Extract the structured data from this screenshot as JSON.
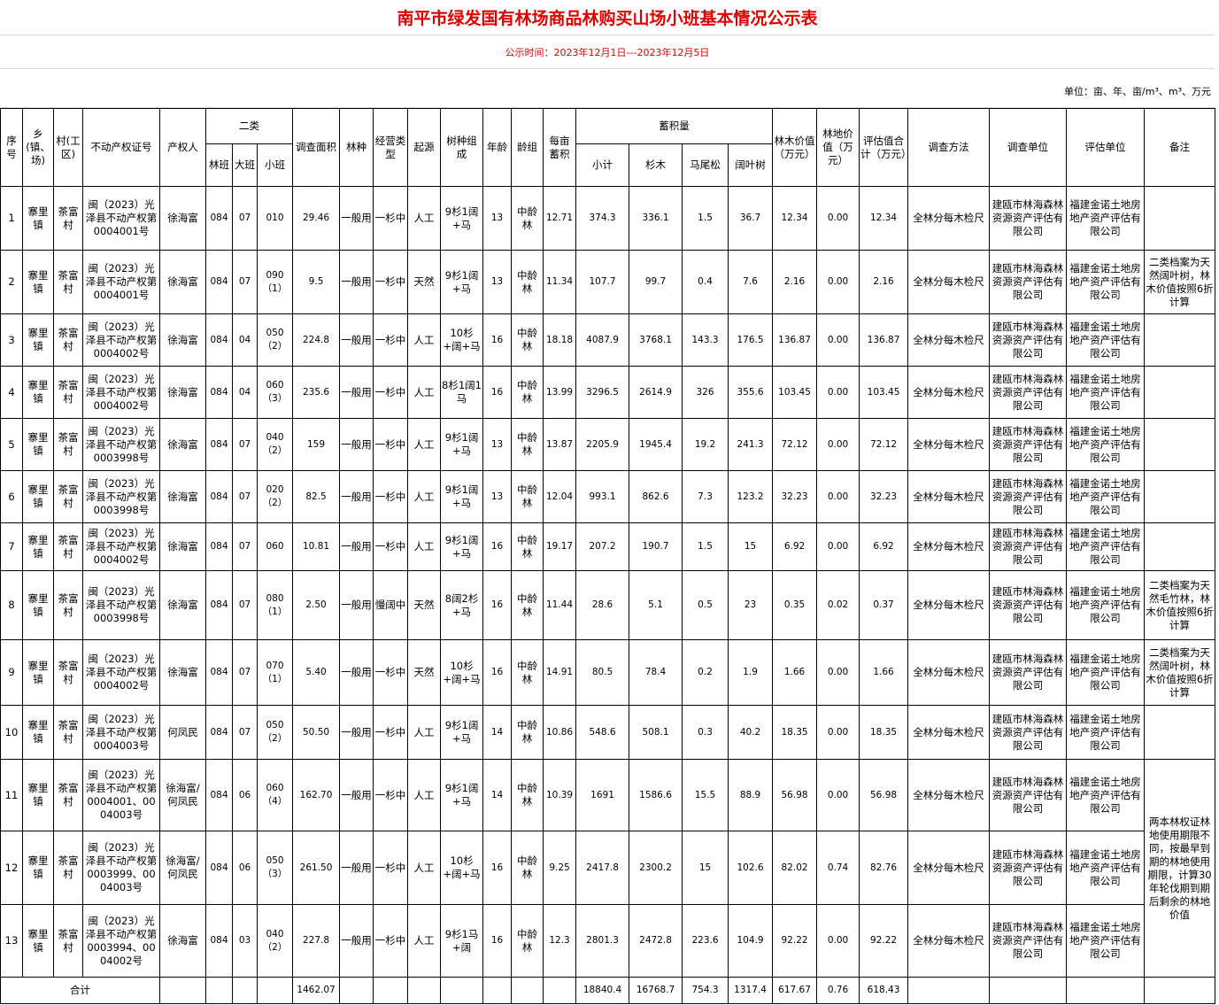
{
  "title": "南平市绿发国有林场商品林购买山场小班基本情况公示表",
  "period": "公示时间：2023年12月1日---2023年12月5日",
  "unit": "单位：亩、年、亩/m³、m³、万元",
  "header": {
    "columns": [
      {
        "label": "序号"
      },
      {
        "label": "乡(镇、场)"
      },
      {
        "label": "村(工区)"
      },
      {
        "label": "不动产权证号"
      },
      {
        "label": "产权人"
      },
      {
        "label": "二类",
        "sub": [
          "林班",
          "大班",
          "小班"
        ]
      },
      {
        "label": "调查面积"
      },
      {
        "label": "林种"
      },
      {
        "label": "经营类型"
      },
      {
        "label": "起源"
      },
      {
        "label": "树种组成"
      },
      {
        "label": "年龄"
      },
      {
        "label": "龄组"
      },
      {
        "label": "每亩蓄积"
      },
      {
        "label": "蓄积量",
        "sub": [
          "小计",
          "杉木",
          "马尾松",
          "阔叶树"
        ]
      },
      {
        "label": "林木价值（万元）"
      },
      {
        "label": "林地价值（万元）"
      },
      {
        "label": "评估值合计（万元）"
      },
      {
        "label": "调查方法"
      },
      {
        "label": "调查单位"
      },
      {
        "label": "评估单位"
      },
      {
        "label": "备注"
      }
    ]
  },
  "rows": [
    {
      "cells": [
        "1",
        "寨里镇",
        "茶富村",
        "闽（2023）光泽县不动产权第0004001号",
        "徐海富",
        "084",
        "07",
        "010",
        "29.46",
        "一般用",
        "一杉中",
        "人工",
        "9杉1阔+马",
        "13",
        "中龄林",
        "12.71",
        "374.3",
        "336.1",
        "1.5",
        "36.7",
        "12.34",
        "0.00",
        "12.34",
        "全林分每木检尺",
        "建瓯市林海森林资源资产评估有限公司",
        "福建金诺土地房地产资产评估有限公司"
      ]
    },
    {
      "cells": [
        "2",
        "寨里镇",
        "茶富村",
        "闽（2023）光泽县不动产权第0004001号",
        "徐海富",
        "084",
        "07",
        "090（1）",
        "9.5",
        "一般用",
        "一杉中",
        "天然",
        "9杉1阔+马",
        "13",
        "中龄林",
        "11.34",
        "107.7",
        "99.7",
        "0.4",
        "7.6",
        "2.16",
        "0.00",
        "2.16",
        "全林分每木检尺",
        "建瓯市林海森林资源资产评估有限公司",
        "福建金诺土地房地产资产评估有限公司"
      ],
      "remark": "二类档案为天然阔叶树，林木价值按照6折计算"
    },
    {
      "cells": [
        "3",
        "寨里镇",
        "茶富村",
        "闽（2023）光泽县不动产权第0004002号",
        "徐海富",
        "084",
        "04",
        "050（2）",
        "224.8",
        "一般用",
        "一杉中",
        "人工",
        "10杉+阔+马",
        "16",
        "中龄林",
        "18.18",
        "4087.9",
        "3768.1",
        "143.3",
        "176.5",
        "136.87",
        "0.00",
        "136.87",
        "全林分每木检尺",
        "建瓯市林海森林资源资产评估有限公司",
        "福建金诺土地房地产资产评估有限公司"
      ]
    },
    {
      "cells": [
        "4",
        "寨里镇",
        "茶富村",
        "闽（2023）光泽县不动产权第0004002号",
        "徐海富",
        "084",
        "04",
        "060（3）",
        "235.6",
        "一般用",
        "一杉中",
        "人工",
        "8杉1阔1马",
        "16",
        "中龄林",
        "13.99",
        "3296.5",
        "2614.9",
        "326",
        "355.6",
        "103.45",
        "0.00",
        "103.45",
        "全林分每木检尺",
        "建瓯市林海森林资源资产评估有限公司",
        "福建金诺土地房地产资产评估有限公司"
      ]
    },
    {
      "cells": [
        "5",
        "寨里镇",
        "茶富村",
        "闽（2023）光泽县不动产权第0003998号",
        "徐海富",
        "084",
        "07",
        "040（2）",
        "159",
        "一般用",
        "一杉中",
        "人工",
        "9杉1阔+马",
        "13",
        "中龄林",
        "13.87",
        "2205.9",
        "1945.4",
        "19.2",
        "241.3",
        "72.12",
        "0.00",
        "72.12",
        "全林分每木检尺",
        "建瓯市林海森林资源资产评估有限公司",
        "福建金诺土地房地产资产评估有限公司"
      ]
    },
    {
      "cells": [
        "6",
        "寨里镇",
        "茶富村",
        "闽（2023）光泽县不动产权第0003998号",
        "徐海富",
        "084",
        "07",
        "020（2）",
        "82.5",
        "一般用",
        "一杉中",
        "人工",
        "9杉1阔+马",
        "13",
        "中龄林",
        "12.04",
        "993.1",
        "862.6",
        "7.3",
        "123.2",
        "32.23",
        "0.00",
        "32.23",
        "全林分每木检尺",
        "建瓯市林海森林资源资产评估有限公司",
        "福建金诺土地房地产资产评估有限公司"
      ]
    },
    {
      "cells": [
        "7",
        "寨里镇",
        "茶富村",
        "闽（2023）光泽县不动产权第0004002号",
        "徐海富",
        "084",
        "07",
        "060",
        "10.81",
        "一般用",
        "一杉中",
        "人工",
        "9杉1阔+马",
        "16",
        "中龄林",
        "19.17",
        "207.2",
        "190.7",
        "1.5",
        "15",
        "6.92",
        "0.00",
        "6.92",
        "全林分每木检尺",
        "建瓯市林海森林资源资产评估有限公司",
        "福建金诺土地房地产资产评估有限公司"
      ]
    },
    {
      "cells": [
        "8",
        "寨里镇",
        "茶富村",
        "闽（2023）光泽县不动产权第0003998号",
        "徐海富",
        "084",
        "07",
        "080（1）",
        "2.50",
        "一般用",
        "慢阔中",
        "天然",
        "8阔2杉+马",
        "16",
        "中龄林",
        "11.44",
        "28.6",
        "5.1",
        "0.5",
        "23",
        "0.35",
        "0.02",
        "0.37",
        "全林分每木检尺",
        "建瓯市林海森林资源资产评估有限公司",
        "福建金诺土地房地产资产评估有限公司"
      ],
      "remark": "二类档案为天然毛竹林，林木价值按照6折计算"
    },
    {
      "cells": [
        "9",
        "寨里镇",
        "茶富村",
        "闽（2023）光泽县不动产权第0004002号",
        "徐海富",
        "084",
        "07",
        "070（1）",
        "5.40",
        "一般用",
        "一杉中",
        "天然",
        "10杉+阔+马",
        "16",
        "中龄林",
        "14.91",
        "80.5",
        "78.4",
        "0.2",
        "1.9",
        "1.66",
        "0.00",
        "1.66",
        "全林分每木检尺",
        "建瓯市林海森林资源资产评估有限公司",
        "福建金诺土地房地产资产评估有限公司"
      ],
      "remark": "二类档案为天然阔叶树，林木价值按照6折计算"
    },
    {
      "cells": [
        "10",
        "寨里镇",
        "茶富村",
        "闽（2023）光泽县不动产权第0004003号",
        "何凤民",
        "084",
        "07",
        "050（2）",
        "50.50",
        "一般用",
        "一杉中",
        "人工",
        "9杉1阔+马",
        "14",
        "中龄林",
        "10.86",
        "548.6",
        "508.1",
        "0.3",
        "40.2",
        "18.35",
        "0.00",
        "18.35",
        "全林分每木检尺",
        "建瓯市林海森林资源资产评估有限公司",
        "福建金诺土地房地产资产评估有限公司"
      ]
    },
    {
      "cells": [
        "11",
        "寨里镇",
        "茶富村",
        "闽（2023）光泽县不动产权第0004001、0004003号",
        "徐海富/何凤民",
        "084",
        "06",
        "060（4）",
        "162.70",
        "一般用",
        "一杉中",
        "人工",
        "9杉1阔+马",
        "14",
        "中龄林",
        "10.39",
        "1691",
        "1586.6",
        "15.5",
        "88.9",
        "56.98",
        "0.00",
        "56.98",
        "全林分每木检尺",
        "建瓯市林海森林资源资产评估有限公司",
        "福建金诺土地房地产资产评估有限公司"
      ],
      "remark": "两本林权证林地使用期限不同，按最早到期的林地使用期限，计算30年轮伐期到期后剩余的林地价值"
    },
    {
      "cells": [
        "12",
        "寨里镇",
        "茶富村",
        "闽（2023）光泽县不动产权第0003999、0004003号",
        "徐海富/何凤民",
        "084",
        "06",
        "050（3）",
        "261.50",
        "一般用",
        "一杉中",
        "人工",
        "10杉+阔+马",
        "16",
        "中龄林",
        "9.25",
        "2417.8",
        "2300.2",
        "15",
        "102.6",
        "82.02",
        "0.74",
        "82.76",
        "全林分每木检尺",
        "建瓯市林海森林资源资产评估有限公司",
        "福建金诺土地房地产资产评估有限公司"
      ]
    },
    {
      "cells": [
        "13",
        "寨里镇",
        "茶富村",
        "闽（2023）光泽县不动产权第0003994、0004002号",
        "徐海富",
        "084",
        "03",
        "040（2）",
        "227.8",
        "一般用",
        "一杉中",
        "人工",
        "9杉1马+阔",
        "16",
        "中龄林",
        "12.3",
        "2801.3",
        "2472.8",
        "223.6",
        "104.9",
        "92.22",
        "0.00",
        "92.22",
        "全林分每木检尺",
        "建瓯市林海森林资源资产评估有限公司",
        "福建金诺土地房地产资产评估有限公司"
      ]
    }
  ],
  "total": {
    "label": "合计",
    "cells": [
      null,
      null,
      null,
      null,
      "1462.07",
      null,
      null,
      null,
      null,
      null,
      null,
      null,
      "18840.4",
      "16768.7",
      "754.3",
      "1317.4",
      "617.67",
      "0.76",
      "618.43",
      null,
      null,
      null,
      null
    ]
  }
}
